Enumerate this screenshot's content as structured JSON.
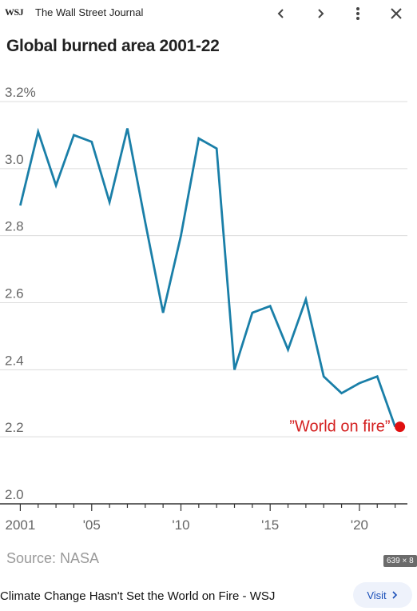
{
  "header": {
    "logo": "WSJ",
    "site_name": "The Wall Street Journal",
    "prev_icon": "chevron-left-icon",
    "next_icon": "chevron-right-icon",
    "more_icon": "more-vertical-icon",
    "close_icon": "close-icon"
  },
  "chart_title": "Global burned area 2001-22",
  "chart_data": {
    "type": "line",
    "title": "Global burned area 2001-22",
    "xlabel": "",
    "ylabel": "",
    "x": [
      2001,
      2002,
      2003,
      2004,
      2005,
      2006,
      2007,
      2008,
      2009,
      2010,
      2011,
      2012,
      2013,
      2014,
      2015,
      2016,
      2017,
      2018,
      2019,
      2020,
      2021,
      2022
    ],
    "series": [
      {
        "values": [
          2.89,
          3.11,
          2.95,
          3.1,
          3.08,
          2.9,
          3.12,
          2.84,
          2.57,
          2.8,
          3.09,
          3.06,
          2.4,
          2.57,
          2.59,
          2.46,
          2.61,
          2.38,
          2.33,
          2.36,
          2.38,
          2.23
        ],
        "color": "#1a7fa8"
      }
    ],
    "ylim": [
      2.0,
      3.2
    ],
    "xlim": [
      2000.4,
      2022.6
    ],
    "y_ticks": [
      2.0,
      2.2,
      2.4,
      2.6,
      2.8,
      3.0,
      3.2
    ],
    "y_tick_labels": [
      "2.0",
      "2.2",
      "2.4",
      "2.6",
      "2.8",
      "3.0",
      "3.2%"
    ],
    "x_tick_positions": [
      2001,
      2005,
      2010,
      2015,
      2020
    ],
    "x_tick_labels": [
      "2001",
      "'05",
      "'10",
      "'15",
      "'20"
    ],
    "annotation": {
      "text": "”World on fire”",
      "x": 2022,
      "y": 2.23,
      "color": "#e01010"
    },
    "grid": true,
    "legend": "none"
  },
  "source": "Source: NASA",
  "image_dims": "639 × 8",
  "caption": "Climate Change Hasn't Set the World on Fire - WSJ",
  "visit_label": "Visit",
  "visit_icon": "chevron-right-icon"
}
